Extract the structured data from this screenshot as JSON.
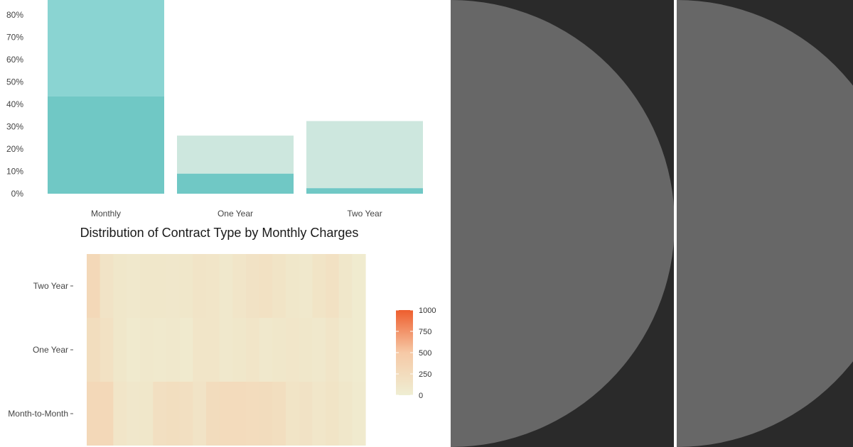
{
  "chart_data": [
    {
      "type": "bar",
      "stacked": true,
      "categories": [
        "Monthly",
        "One Year",
        "Two Year"
      ],
      "series": [
        {
          "values": [
            43.5,
            9,
            2.5
          ],
          "color": "#70c8c5"
        },
        {
          "values": [
            47.5,
            17,
            30
          ],
          "colors": [
            "#8ad4d2",
            "#cde7de",
            "#cde7de"
          ]
        }
      ],
      "y_ticks": [
        "0%",
        "10%",
        "20%",
        "30%",
        "40%",
        "50%",
        "60%",
        "70%",
        "80%"
      ],
      "ylim": [
        0,
        88
      ],
      "grid": false
    },
    {
      "type": "heatmap",
      "title": "Distribution of Contract Type by Monthly Charges",
      "rows": [
        "Two Year",
        "One Year",
        "Month-to-Month"
      ],
      "values": [
        [
          300,
          150,
          100,
          80,
          100,
          100,
          90,
          100,
          130,
          120,
          80,
          120,
          160,
          180,
          140,
          100,
          80,
          140,
          180,
          100,
          40
        ],
        [
          230,
          180,
          100,
          60,
          80,
          70,
          80,
          60,
          120,
          120,
          80,
          100,
          120,
          80,
          100,
          110,
          100,
          80,
          120,
          70,
          40
        ],
        [
          300,
          300,
          120,
          90,
          100,
          200,
          220,
          200,
          150,
          240,
          260,
          260,
          250,
          240,
          220,
          140,
          160,
          110,
          140,
          100,
          60
        ]
      ],
      "colorscale": {
        "min": 0,
        "max": 1000,
        "ticks": [
          "1000",
          "750",
          "500",
          "250",
          "0"
        ],
        "low_color": "#efeed3",
        "mid_color": "#f6c9a6",
        "high_color": "#ee5e2e"
      },
      "legend_position": "right"
    }
  ]
}
